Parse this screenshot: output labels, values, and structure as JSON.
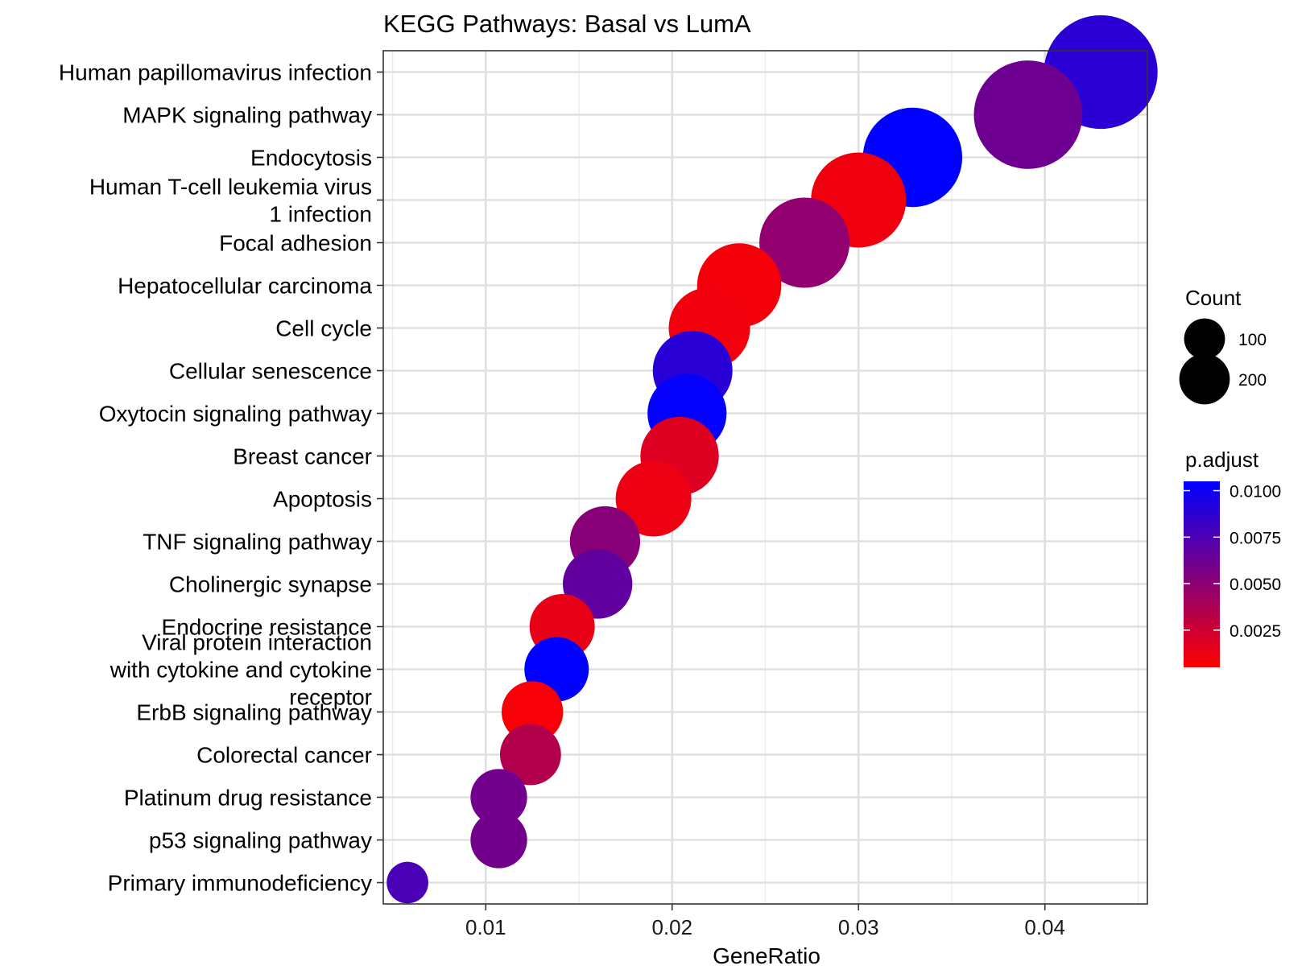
{
  "chart_data": {
    "type": "scatter",
    "title": "KEGG Pathways: Basal vs LumA",
    "xlabel": "GeneRatio",
    "ylabel": "",
    "xlim": [
      0.0045,
      0.0455
    ],
    "x_ticks": [
      0.01,
      0.02,
      0.03,
      0.04
    ],
    "x_tick_labels": [
      "0.01",
      "0.02",
      "0.03",
      "0.04"
    ],
    "grid": true,
    "legend_position": "right",
    "categories": [
      "Human papillomavirus infection",
      "MAPK signaling pathway",
      "Endocytosis",
      "Human T-cell leukemia virus\n1 infection",
      "Focal adhesion",
      "Hepatocellular carcinoma",
      "Cell cycle",
      "Cellular senescence",
      "Oxytocin signaling pathway",
      "Breast cancer",
      "Apoptosis",
      "TNF signaling pathway",
      "Cholinergic synapse",
      "Endocrine resistance",
      "Viral protein interaction\nwith cytokine and cytokine\nreceptor",
      "ErbB signaling pathway",
      "Colorectal cancer",
      "Platinum drug resistance",
      "p53 signaling pathway",
      "Primary immunodeficiency"
    ],
    "x": [
      0.043,
      0.0391,
      0.0329,
      0.03,
      0.0271,
      0.0236,
      0.022,
      0.0211,
      0.0208,
      0.0204,
      0.019,
      0.0164,
      0.016,
      0.0141,
      0.0138,
      0.0125,
      0.0124,
      0.0107,
      0.0107,
      0.0058
    ],
    "count": [
      246,
      224,
      188,
      172,
      155,
      135,
      126,
      121,
      119,
      117,
      109,
      94,
      92,
      81,
      79,
      72,
      71,
      61,
      61,
      33
    ],
    "p_adjust": [
      0.0088,
      0.0062,
      0.0105,
      0.0011,
      0.0048,
      0.0009,
      0.001,
      0.0089,
      0.0104,
      0.0018,
      0.0012,
      0.0052,
      0.0067,
      0.0014,
      0.0105,
      0.0008,
      0.0035,
      0.006,
      0.006,
      0.0076
    ],
    "size_legend": {
      "title": "Count",
      "values": [
        100,
        200
      ],
      "labels": [
        "100",
        "200"
      ]
    },
    "color_legend": {
      "title": "p.adjust",
      "min": 0.0005,
      "max": 0.0105,
      "low_color": "#FF0000",
      "high_color": "#0000FF",
      "ticks": [
        0.0025,
        0.005,
        0.0075,
        0.01
      ],
      "tick_labels": [
        "0.0025",
        "0.0050",
        "0.0075",
        "0.0100"
      ]
    }
  }
}
